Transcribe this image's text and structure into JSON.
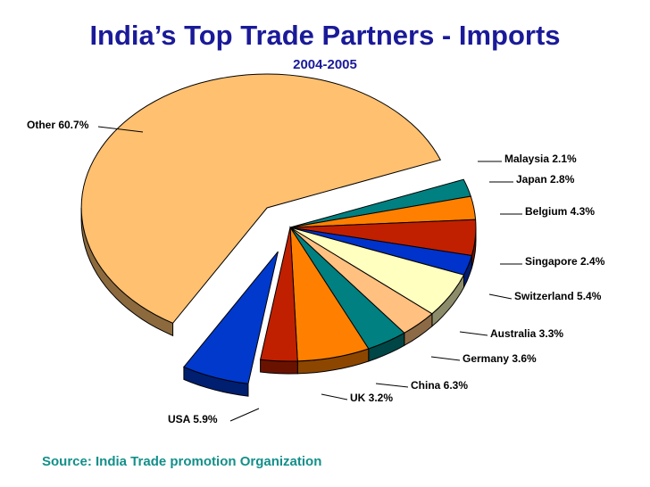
{
  "title": "India’s Top Trade Partners - Imports",
  "subtitle": "2004-2005",
  "source": "Source: India Trade promotion Organization",
  "chart_data": {
    "type": "pie",
    "title": "India’s Top Trade Partners - Imports",
    "subtitle": "2004-2005",
    "style": "3d-exploded",
    "categories": [
      "Malaysia",
      "Japan",
      "Belgium",
      "Singapore",
      "Switzerland",
      "Australia",
      "Germany",
      "China",
      "UK",
      "USA",
      "Other"
    ],
    "values": [
      2.1,
      2.8,
      4.3,
      2.4,
      5.4,
      3.3,
      3.6,
      6.3,
      3.2,
      5.9,
      60.7
    ],
    "labels": [
      "Malaysia  2.1%",
      "Japan  2.8%",
      "Belgium  4.3%",
      "Singapore  2.4%",
      "Switzerland  5.4%",
      "Australia  3.3%",
      "Germany  3.6%",
      "China  6.3%",
      "UK  3.2%",
      "USA  5.9%",
      "Other  60.7%"
    ],
    "colors": [
      "#008080",
      "#ff8000",
      "#c02000",
      "#0033cc",
      "#ffffc0",
      "#ffc080",
      "#008080",
      "#ff8000",
      "#c02000",
      "#0039cc",
      "#ffc070"
    ],
    "exploded": [
      "USA",
      "Other"
    ],
    "legend": "none",
    "data_labels": "outside-with-leader-lines"
  }
}
